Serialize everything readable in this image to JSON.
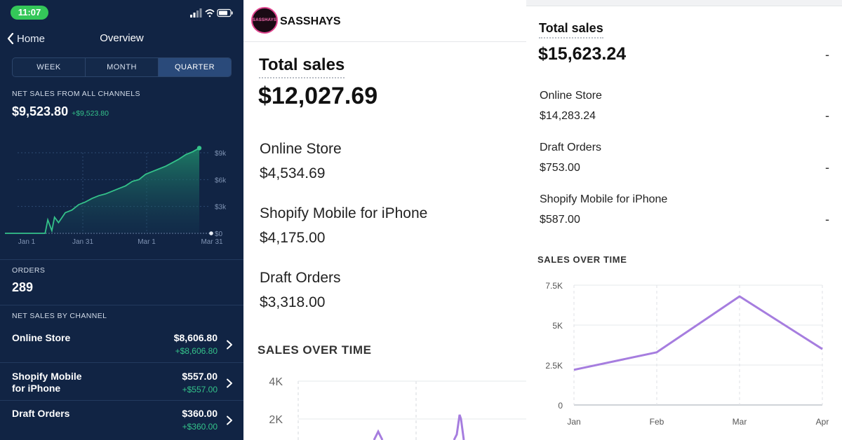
{
  "phone": {
    "status_time": "11:07",
    "nav": {
      "back_label": "Home",
      "title": "Overview"
    },
    "tabs": [
      "WEEK",
      "MONTH",
      "QUARTER"
    ],
    "selected_tab": "QUARTER",
    "net_sales": {
      "label": "NET SALES FROM ALL CHANNELS",
      "value": "$9,523.80",
      "delta": "+$9,523.80"
    },
    "orders": {
      "label": "ORDERS",
      "value": "289"
    },
    "by_channel": {
      "label": "NET SALES BY CHANNEL",
      "items": [
        {
          "name": "Online Store",
          "value": "$8,606.80",
          "delta": "+$8,606.80"
        },
        {
          "name": "Shopify Mobile for iPhone",
          "value": "$557.00",
          "delta": "+$557.00"
        },
        {
          "name": "Draft Orders",
          "value": "$360.00",
          "delta": "+$360.00"
        }
      ]
    },
    "accent_color": "#34c28a",
    "background_color": "#112444"
  },
  "store_a": {
    "brand": "SASSHAYS",
    "logo_text": "SASSHAYS",
    "total_label": "Total sales",
    "total_value": "$12,027.69",
    "rows": [
      {
        "name": "Online Store",
        "value": "$4,534.69"
      },
      {
        "name": "Shopify Mobile for iPhone",
        "value": "$4,175.00"
      },
      {
        "name": "Draft Orders",
        "value": "$3,318.00"
      }
    ],
    "sales_over_time": "SALES OVER TIME"
  },
  "store_b": {
    "total_label": "Total sales",
    "total_value": "$15,623.24",
    "dash": "-",
    "rows": [
      {
        "name": "Online Store",
        "value": "$14,283.24"
      },
      {
        "name": "Draft Orders",
        "value": "$753.00"
      },
      {
        "name": "Shopify Mobile for iPhone",
        "value": "$587.00"
      }
    ],
    "sales_over_time": "SALES OVER TIME"
  },
  "chart_data": [
    {
      "type": "area",
      "x_ticks": [
        "Jan 1",
        "Jan 31",
        "Mar 1",
        "Mar 31"
      ],
      "y_ticks": [
        "$9k",
        "$6k",
        "$3k",
        "$0"
      ],
      "ylim": [
        0,
        9000
      ],
      "series": [
        {
          "x": [
            0,
            60,
            64,
            70,
            74,
            80,
            90,
            100,
            110,
            120,
            130,
            140,
            150,
            160,
            170,
            180,
            190,
            200,
            210,
            220,
            230,
            240,
            250,
            260,
            270,
            280,
            290
          ],
          "values": [
            0,
            0,
            1500,
            300,
            1800,
            1200,
            2300,
            2600,
            3200,
            3500,
            3900,
            4200,
            4400,
            4700,
            5000,
            5300,
            5800,
            6000,
            6600,
            6900,
            7200,
            7500,
            7900,
            8300,
            8800,
            9100,
            9523
          ]
        }
      ],
      "color": "#34c28a",
      "grid": true
    },
    {
      "type": "line",
      "y_ticks": [
        "4K",
        "2K"
      ],
      "ylim": [
        0,
        4000
      ],
      "color": "#a67ddf",
      "grid": true
    },
    {
      "type": "line",
      "categories": [
        "Jan",
        "Feb",
        "Mar",
        "Apr"
      ],
      "y_ticks": [
        "7.5K",
        "5K",
        "2.5K",
        "0"
      ],
      "ylim": [
        0,
        7500
      ],
      "series": [
        {
          "values": [
            2200,
            3300,
            6800,
            3500
          ]
        }
      ],
      "color": "#a67ddf",
      "grid": true
    }
  ]
}
